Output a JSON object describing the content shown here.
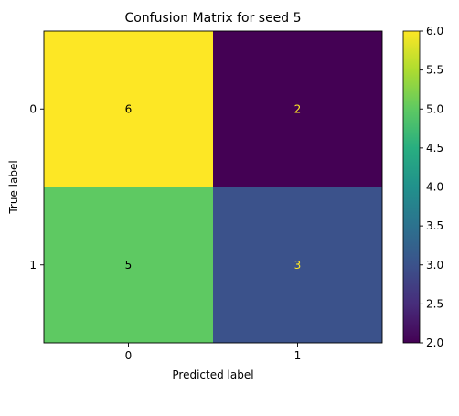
{
  "chart_data": {
    "type": "heatmap",
    "title": "Confusion Matrix for seed 5",
    "xlabel": "Predicted label",
    "ylabel": "True label",
    "x_categories": [
      "0",
      "1"
    ],
    "y_categories": [
      "0",
      "1"
    ],
    "matrix": [
      [
        6,
        2
      ],
      [
        5,
        3
      ]
    ],
    "colormap": "viridis",
    "colorbar": {
      "range": [
        2.0,
        6.0
      ],
      "ticks": [
        "2.0",
        "2.5",
        "3.0",
        "3.5",
        "4.0",
        "4.5",
        "5.0",
        "5.5",
        "6.0"
      ]
    },
    "annotation_colors": {
      "on_bright_cell": "#000000",
      "on_dark_cell": "#fde725"
    }
  }
}
